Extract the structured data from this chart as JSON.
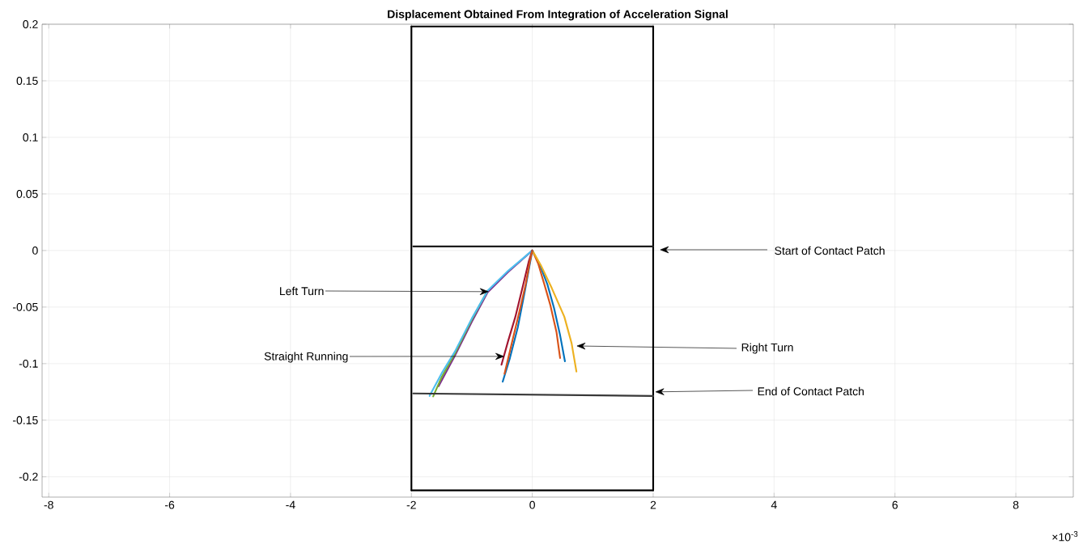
{
  "chart_data": {
    "type": "line",
    "title": "Displacement Obtained From Integration of Acceleration Signal",
    "xlim": [
      -8.11,
      8.95
    ],
    "ylim": [
      -0.218,
      0.2
    ],
    "xticks": [
      -8,
      -6,
      -4,
      -2,
      0,
      2,
      4,
      6,
      8
    ],
    "yticks": [
      -0.2,
      -0.15,
      -0.1,
      -0.05,
      0,
      0.05,
      0.1,
      0.15,
      0.2
    ],
    "grid": true,
    "marker": "none",
    "line_style": "solid",
    "series": [
      {
        "color": "#0072bd",
        "x": [
          0,
          0.12,
          0.25,
          0.36,
          0.46,
          0.54
        ],
        "values": [
          0,
          -0.012,
          -0.03,
          -0.051,
          -0.075,
          -0.098
        ]
      },
      {
        "color": "#d95319",
        "x": [
          0,
          0.1,
          0.2,
          0.3,
          0.4,
          0.46
        ],
        "values": [
          0,
          -0.012,
          -0.03,
          -0.0486,
          -0.072,
          -0.095
        ]
      },
      {
        "color": "#edb120",
        "x": [
          0,
          0.14,
          0.32,
          0.53,
          0.65,
          0.73
        ],
        "values": [
          0,
          -0.013,
          -0.033,
          -0.0586,
          -0.082,
          -0.107
        ]
      },
      {
        "color": "#7e2f8e",
        "x": [
          0,
          -0.4,
          -0.74,
          -1.0,
          -1.28,
          -1.45,
          -1.55
        ],
        "values": [
          0,
          -0.019,
          -0.037,
          -0.063,
          -0.093,
          -0.11,
          -0.12
        ]
      },
      {
        "color": "#77ac30",
        "x": [
          -0.74,
          -1.0,
          -1.28,
          -1.5,
          -1.64
        ],
        "values": [
          -0.0355,
          -0.061,
          -0.091,
          -0.112,
          -0.129
        ]
      },
      {
        "color": "#4dbeee",
        "x": [
          0,
          -0.4,
          -0.74,
          -1.0,
          -1.28,
          -1.5,
          -1.7
        ],
        "values": [
          0,
          -0.018,
          -0.0357,
          -0.06,
          -0.0893,
          -0.1086,
          -0.1286
        ]
      },
      {
        "color": "#a2142f",
        "x": [
          0,
          -0.06,
          -0.15,
          -0.28,
          -0.4,
          -0.51
        ],
        "values": [
          0,
          -0.01,
          -0.03,
          -0.0586,
          -0.08,
          -0.101
        ]
      },
      {
        "color": "#0072bd",
        "x": [
          0,
          -0.04,
          -0.12,
          -0.24,
          -0.37,
          -0.49
        ],
        "values": [
          0,
          null,
          -0.035,
          -0.068,
          -0.095,
          -0.116
        ]
      },
      {
        "color": "#d95319",
        "x": [
          0,
          -0.04,
          -0.11,
          -0.2,
          -0.33,
          -0.46
        ],
        "values": [
          0,
          -0.01,
          -0.03,
          -0.051,
          -0.08,
          -0.109
        ]
      },
      {
        "color": "#000000",
        "x": [
          -2,
          2
        ],
        "values": [
          0.198,
          0.198
        ]
      },
      {
        "color": "#000000",
        "x": [
          -2,
          2
        ],
        "values": [
          -0.212,
          -0.212
        ]
      },
      {
        "color": "#000000",
        "x": [
          -2,
          -2
        ],
        "values": [
          0.198,
          -0.212
        ]
      },
      {
        "color": "#000000",
        "x": [
          2,
          2
        ],
        "values": [
          0.198,
          -0.212
        ]
      },
      {
        "color": "#1c1c1c",
        "x": [
          -1.97,
          2
        ],
        "values": [
          0.0036,
          0.0036
        ]
      },
      {
        "color": "#383838",
        "x": [
          -1.97,
          2
        ],
        "values": [
          -0.1264,
          -0.1286
        ]
      }
    ],
    "annotations": [
      "Start of Contact Patch",
      {
        "text": "Left Turn",
        "x": -0.716,
        "y": -0.0364
      },
      {
        "text": "Straight Running",
        "x": -0.459,
        "y": -0.0936
      },
      "Right Turn",
      {
        "text": "End of Contact Patch",
        "x": 2.03,
        "y": -0.125
      },
      "×10$^{-3}$"
    ]
  }
}
